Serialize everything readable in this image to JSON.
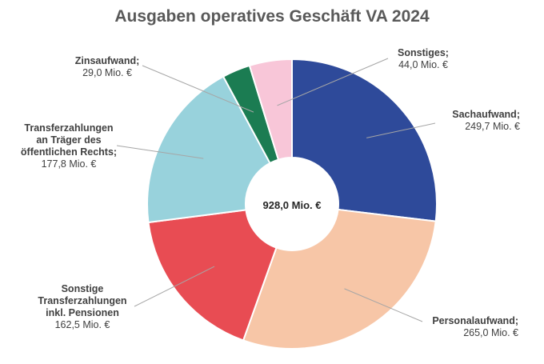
{
  "chart_data": {
    "type": "pie",
    "title": "Ausgaben operatives Geschäft VA 2024",
    "center_label": "928,0 Mio. €",
    "total": 928.0,
    "unit": "Mio. €",
    "slices": [
      {
        "name": "Sachaufwand",
        "value": 249.7,
        "name_lines": [
          "Sachaufwand;"
        ],
        "value_label": "249,7 Mio. €",
        "color": "#2e4a9a"
      },
      {
        "name": "Personalaufwand",
        "value": 265.0,
        "name_lines": [
          "Personalaufwand;"
        ],
        "value_label": "265,0 Mio. €",
        "color": "#f7c6a7"
      },
      {
        "name": "Sonstige Transferzahlungen inkl. Pensionen",
        "value": 162.5,
        "name_lines": [
          "Sonstige",
          "Transferzahlungen",
          "inkl. Pensionen"
        ],
        "value_label": "162,5 Mio. €",
        "color": "#e84c53"
      },
      {
        "name": "Transferzahlungen an Träger des öffentlichen Rechts",
        "value": 177.8,
        "name_lines": [
          "Transferzahlungen",
          "an Träger des",
          "öffentlichen Rechts;"
        ],
        "value_label": "177,8 Mio. €",
        "color": "#98d2dc"
      },
      {
        "name": "Zinsaufwand",
        "value": 29.0,
        "name_lines": [
          "Zinsaufwand;"
        ],
        "value_label": "29,0 Mio. €",
        "color": "#1b7c52"
      },
      {
        "name": "Sonstiges",
        "value": 44.0,
        "name_lines": [
          "Sonstiges;"
        ],
        "value_label": "44,0 Mio. €",
        "color": "#f8c6d8"
      }
    ]
  }
}
